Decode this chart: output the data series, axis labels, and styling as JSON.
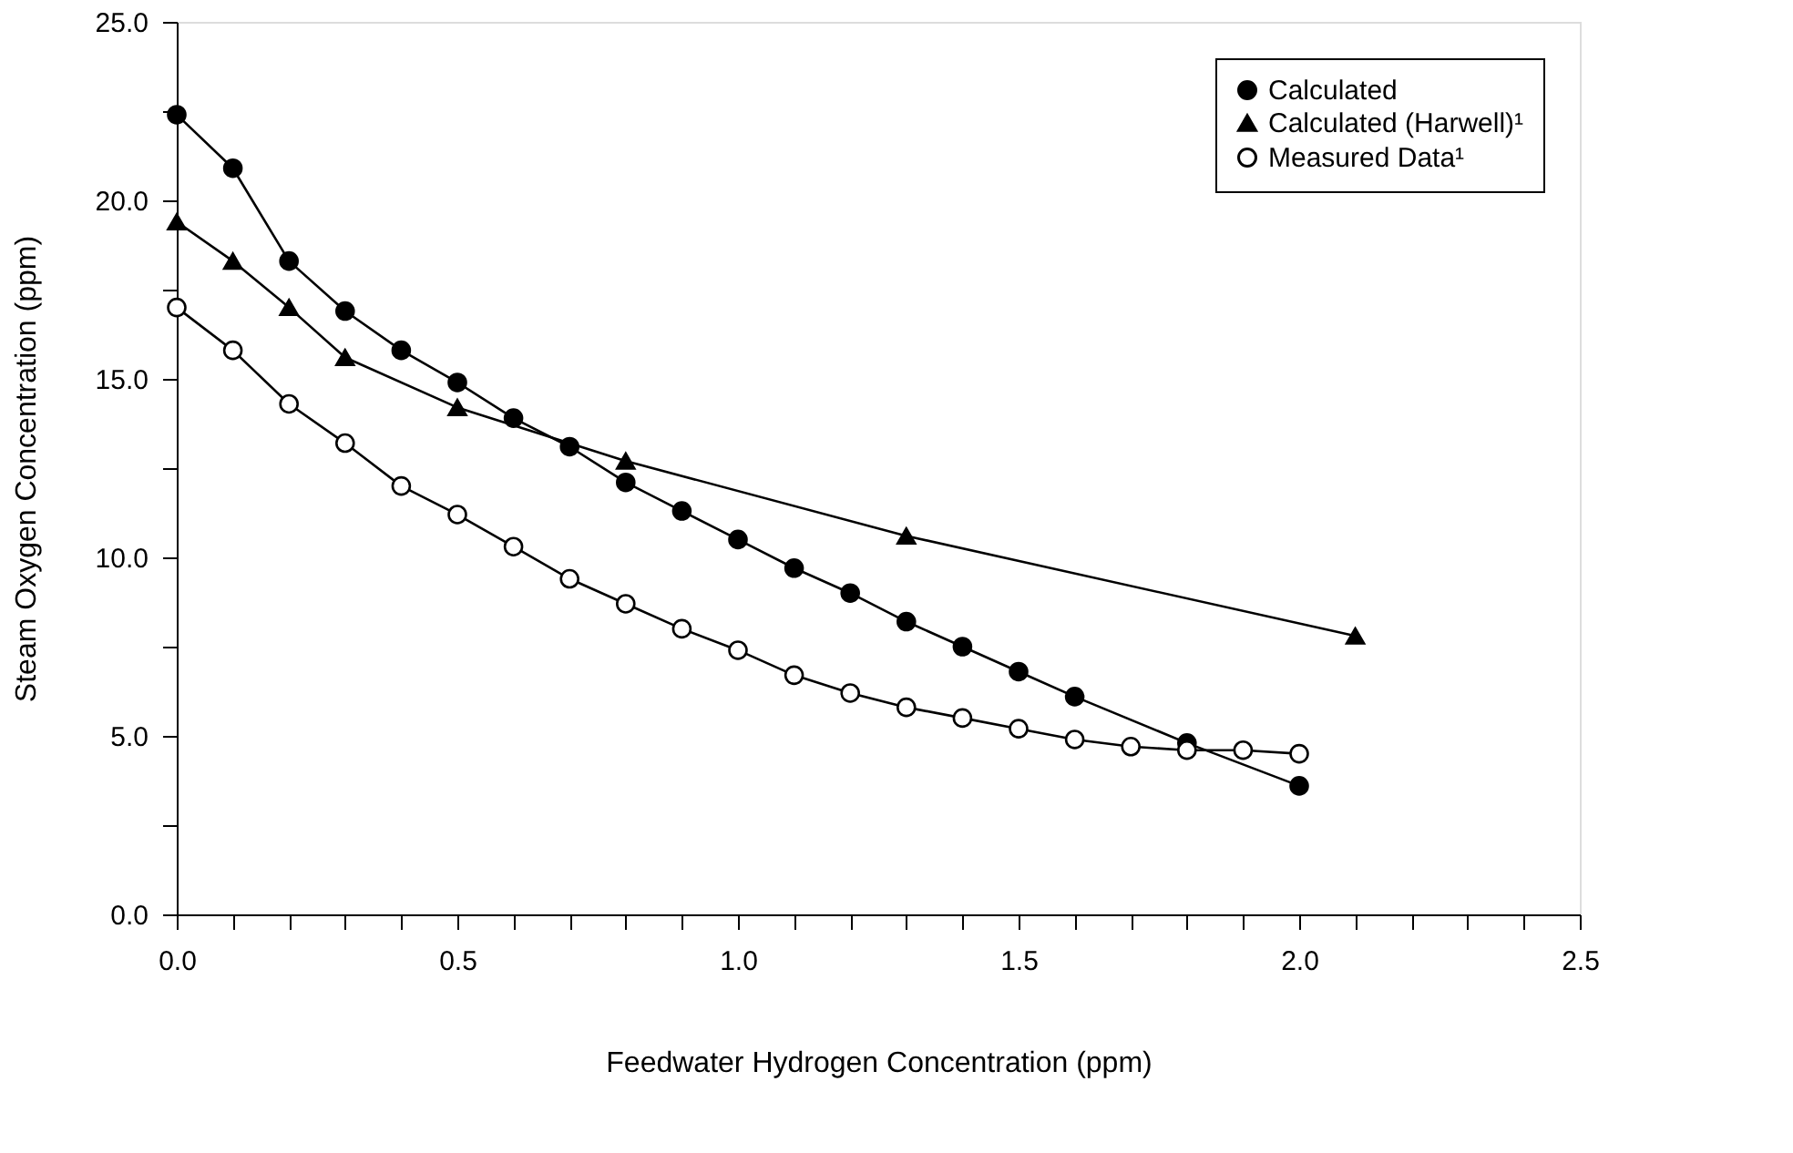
{
  "chart_data": {
    "type": "line",
    "xlabel": "Feedwater Hydrogen Concentration (ppm)",
    "ylabel": "Steam Oxygen Concentration (ppm)",
    "xlim": [
      0,
      2.5
    ],
    "ylim": [
      0,
      25
    ],
    "xticks": [
      {
        "value": 0,
        "label": "0.0"
      },
      {
        "value": 0.1,
        "label": null
      },
      {
        "value": 0.2,
        "label": null
      },
      {
        "value": 0.3,
        "label": null
      },
      {
        "value": 0.4,
        "label": null
      },
      {
        "value": 0.5,
        "label": "0.5"
      },
      {
        "value": 0.6,
        "label": null
      },
      {
        "value": 0.7,
        "label": null
      },
      {
        "value": 0.8,
        "label": null
      },
      {
        "value": 0.9,
        "label": null
      },
      {
        "value": 1,
        "label": "1.0"
      },
      {
        "value": 1.1,
        "label": null
      },
      {
        "value": 1.2,
        "label": null
      },
      {
        "value": 1.3,
        "label": null
      },
      {
        "value": 1.4,
        "label": null
      },
      {
        "value": 1.5,
        "label": "1.5"
      },
      {
        "value": 1.6,
        "label": null
      },
      {
        "value": 1.7,
        "label": null
      },
      {
        "value": 1.8,
        "label": null
      },
      {
        "value": 1.9,
        "label": null
      },
      {
        "value": 2,
        "label": "2.0"
      },
      {
        "value": 2.1,
        "label": null
      },
      {
        "value": 2.2,
        "label": null
      },
      {
        "value": 2.3,
        "label": null
      },
      {
        "value": 2.4,
        "label": null
      },
      {
        "value": 2.5,
        "label": "2.5"
      }
    ],
    "yticks": [
      {
        "value": 0,
        "label": "0.0"
      },
      {
        "value": 2.5,
        "label": null
      },
      {
        "value": 5,
        "label": "5.0"
      },
      {
        "value": 7.5,
        "label": null
      },
      {
        "value": 10,
        "label": "10.0"
      },
      {
        "value": 12.5,
        "label": null
      },
      {
        "value": 15,
        "label": "15.0"
      },
      {
        "value": 17.5,
        "label": null
      },
      {
        "value": 20,
        "label": "20.0"
      },
      {
        "value": 22.5,
        "label": null
      },
      {
        "value": 25,
        "label": "25.0"
      }
    ],
    "grid": false,
    "legend": "top right",
    "line_style": "solid",
    "series": [
      {
        "name": "Calculated",
        "color": "#000000",
        "marker": "circle",
        "x": [
          0,
          0.1,
          0.2,
          0.3,
          0.4,
          0.5,
          0.6,
          0.7,
          0.8,
          0.9,
          1.0,
          1.1,
          1.2,
          1.3,
          1.4,
          1.5,
          1.6,
          1.8,
          2.0
        ],
        "values": [
          22.4,
          20.9,
          18.3,
          16.9,
          15.8,
          14.9,
          13.9,
          13.1,
          12.1,
          11.3,
          10.5,
          9.7,
          9.0,
          8.2,
          7.5,
          6.8,
          6.1,
          4.8,
          3.6
        ]
      },
      {
        "name": "Calculated (Harwell)¹",
        "color": "#000000",
        "marker": "triangle",
        "x": [
          0,
          0.1,
          0.2,
          0.3,
          0.5,
          0.8,
          1.3,
          2.1
        ],
        "values": [
          19.4,
          18.3,
          17.0,
          15.6,
          14.2,
          12.7,
          10.6,
          7.8
        ]
      },
      {
        "name": "Measured Data¹",
        "color": "#000000",
        "marker": "circle",
        "x": [
          0,
          0.1,
          0.2,
          0.3,
          0.4,
          0.5,
          0.6,
          0.7,
          0.8,
          0.9,
          1.0,
          1.1,
          1.2,
          1.3,
          1.4,
          1.5,
          1.6,
          1.7,
          1.8,
          1.9,
          2.0
        ],
        "values": [
          17.0,
          15.8,
          14.3,
          13.2,
          12.0,
          11.2,
          10.3,
          9.4,
          8.7,
          8.0,
          7.4,
          6.7,
          6.2,
          5.8,
          5.5,
          5.2,
          4.9,
          4.7,
          4.6,
          4.6,
          4.5
        ]
      }
    ]
  }
}
